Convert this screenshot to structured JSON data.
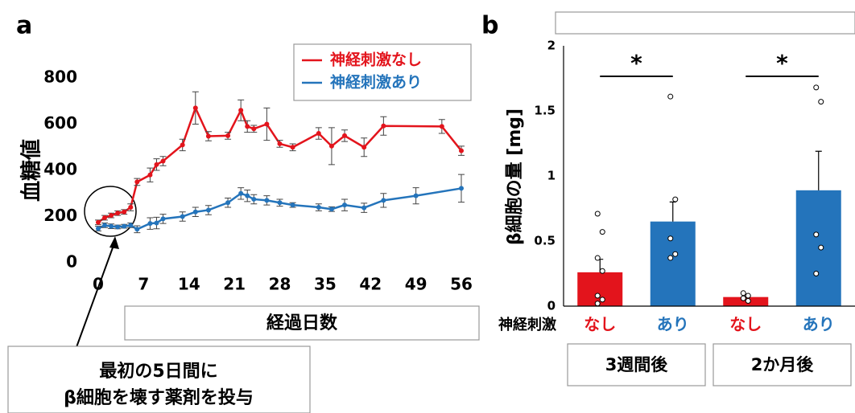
{
  "chart_data": [
    {
      "type": "line",
      "panel": "a",
      "y_label": "血糖値",
      "x_label": "経過日数",
      "annotation": [
        "最初の5日間に",
        "β細胞を壊す薬剤を投与"
      ],
      "xlim": [
        0,
        56
      ],
      "xticks": [
        0,
        7,
        14,
        21,
        28,
        35,
        42,
        49,
        56
      ],
      "ylim": [
        0,
        800
      ],
      "yticks": [
        0,
        200,
        400,
        600,
        800
      ],
      "legend": "top-right",
      "series": [
        {
          "name": "神経刺激なし",
          "color": "#e3141c",
          "x": [
            0,
            1,
            2,
            3,
            4,
            5,
            6,
            8,
            9,
            10,
            13,
            15,
            17,
            20,
            22,
            23,
            24,
            26,
            28,
            30,
            34,
            36,
            38,
            41,
            44,
            53,
            56
          ],
          "values": [
            175,
            195,
            205,
            215,
            220,
            240,
            350,
            380,
            425,
            440,
            510,
            670,
            548,
            550,
            660,
            590,
            580,
            600,
            515,
            500,
            560,
            505,
            550,
            500,
            592,
            590,
            485
          ],
          "errors": [
            10,
            10,
            10,
            10,
            10,
            15,
            15,
            30,
            25,
            20,
            25,
            70,
            20,
            15,
            45,
            25,
            15,
            70,
            15,
            15,
            25,
            80,
            25,
            40,
            40,
            30,
            20
          ]
        },
        {
          "name": "神経刺激あり",
          "color": "#2474bb",
          "x": [
            0,
            1,
            2,
            3,
            4,
            5,
            6,
            8,
            9,
            10,
            13,
            15,
            17,
            20,
            22,
            23,
            24,
            26,
            28,
            30,
            34,
            36,
            38,
            41,
            44,
            49,
            56
          ],
          "values": [
            148,
            162,
            158,
            155,
            158,
            162,
            145,
            170,
            172,
            190,
            200,
            220,
            228,
            260,
            300,
            290,
            275,
            270,
            260,
            250,
            240,
            232,
            250,
            238,
            270,
            290,
            322
          ],
          "errors": [
            10,
            10,
            10,
            8,
            8,
            10,
            15,
            25,
            25,
            20,
            20,
            20,
            20,
            20,
            25,
            25,
            20,
            20,
            15,
            10,
            15,
            10,
            25,
            20,
            30,
            35,
            60
          ]
        }
      ]
    },
    {
      "type": "bar",
      "panel": "b",
      "y_label": "β細胞の量 [mg]",
      "row_label": "神経刺激",
      "categories": [
        "なし",
        "あり",
        "なし",
        "あり"
      ],
      "colors": [
        "#e3141c",
        "#2474bb",
        "#e3141c",
        "#2474bb"
      ],
      "groups": [
        "3週間後",
        "2か月後"
      ],
      "significance": [
        "*",
        "*"
      ],
      "ylim": [
        0,
        2
      ],
      "yticks": [
        0,
        0.5,
        1,
        1.5,
        2
      ],
      "values": [
        0.26,
        0.65,
        0.07,
        0.89
      ],
      "errors": [
        0.1,
        0.15,
        0.02,
        0.3
      ],
      "points": [
        [
          0.71,
          0.57,
          0.37,
          0.27,
          0.08,
          0.05,
          0.02
        ],
        [
          1.61,
          0.82,
          0.52,
          0.4,
          0.37
        ],
        [
          0.1,
          0.08,
          0.06,
          0.04
        ],
        [
          1.68,
          1.57,
          0.55,
          0.45,
          0.25
        ]
      ]
    }
  ]
}
